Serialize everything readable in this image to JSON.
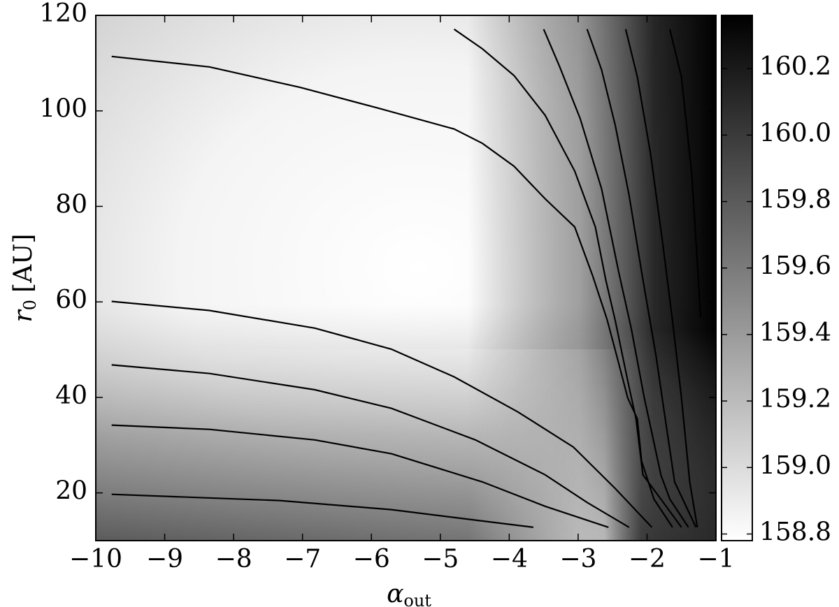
{
  "chart_data": {
    "type": "contour",
    "xlabel": {
      "symbol": "α",
      "subscript": "out"
    },
    "ylabel": {
      "symbol": "r",
      "subscript": "0",
      "unit": "[AU]"
    },
    "xlim": [
      -10,
      -1
    ],
    "ylim": [
      10,
      120
    ],
    "xticks": [
      {
        "value": -10,
        "label": "−10"
      },
      {
        "value": -9,
        "label": "−9"
      },
      {
        "value": -8,
        "label": "−8"
      },
      {
        "value": -7,
        "label": "−7"
      },
      {
        "value": -6,
        "label": "−6"
      },
      {
        "value": -5,
        "label": "−5"
      },
      {
        "value": -4,
        "label": "−4"
      },
      {
        "value": -3,
        "label": "−3"
      },
      {
        "value": -2,
        "label": "−2"
      },
      {
        "value": -1,
        "label": "−1"
      }
    ],
    "yticks": [
      20,
      40,
      60,
      80,
      100,
      120
    ],
    "color": "#000000",
    "contours": [
      {
        "x": [
          -9.77,
          -8.35,
          -7.03,
          -5.91,
          -4.8,
          -4.39,
          -3.93,
          -3.48,
          -3.05,
          -2.79,
          -2.58,
          -2.44,
          -2.28,
          -2.14,
          -2.08,
          -1.9,
          -1.63
        ],
        "y": [
          111.4,
          109.2,
          104.9,
          100.6,
          96.2,
          93.2,
          88.4,
          81.6,
          75.7,
          65.5,
          56.3,
          48.7,
          39.9,
          35.5,
          26.7,
          18.7,
          12.8
        ]
      },
      {
        "x": [
          -4.8,
          -4.39,
          -3.93,
          -3.48,
          -3.05,
          -2.75,
          -2.6,
          -2.46,
          -2.28,
          -2.16,
          -2.06,
          -1.8,
          -1.5
        ],
        "y": [
          117.1,
          113.0,
          107.4,
          99.1,
          87.4,
          75.7,
          64.7,
          56.0,
          43.5,
          35.5,
          23.8,
          18.7,
          12.8
        ]
      },
      {
        "x": [
          -3.5,
          -3.27,
          -2.97,
          -2.66,
          -2.41,
          -2.23,
          -2.04,
          -1.93,
          -1.8,
          -1.67,
          -1.4
        ],
        "y": [
          117.1,
          109.3,
          98.4,
          83.7,
          66.2,
          54.5,
          39.9,
          32.6,
          23.8,
          18.7,
          12.8
        ]
      },
      {
        "x": [
          -2.87,
          -2.66,
          -2.46,
          -2.26,
          -2.06,
          -1.87,
          -1.72,
          -1.6,
          -1.29
        ],
        "y": [
          117.1,
          108.6,
          96.9,
          82.3,
          64.7,
          48.7,
          34.0,
          22.3,
          12.8
        ]
      },
      {
        "x": [
          -2.31,
          -2.14,
          -1.95,
          -1.77,
          -1.63,
          -1.5,
          -1.38,
          -1.27
        ],
        "y": [
          117.1,
          107.1,
          91.1,
          72.0,
          56.0,
          39.9,
          22.3,
          12.8
        ]
      },
      {
        "x": [
          -1.67,
          -1.5,
          -1.35,
          -1.22
        ],
        "y": [
          117.1,
          107.1,
          86.7,
          56.7
        ]
      },
      {
        "x": [
          -9.77,
          -8.35,
          -6.82,
          -5.71,
          -4.8,
          -3.88,
          -3.07,
          -2.46,
          -1.93
        ],
        "y": [
          60.1,
          58.2,
          54.5,
          50.1,
          44.3,
          37.0,
          29.6,
          20.9,
          12.8
        ]
      },
      {
        "x": [
          -9.77,
          -8.35,
          -6.82,
          -5.71,
          -4.49,
          -3.48,
          -2.87,
          -2.26
        ],
        "y": [
          46.8,
          45.0,
          41.6,
          37.7,
          31.1,
          23.8,
          18.0,
          12.8
        ]
      },
      {
        "x": [
          -9.77,
          -8.35,
          -6.82,
          -5.71,
          -4.39,
          -3.48,
          -2.56
        ],
        "y": [
          34.2,
          33.3,
          31.1,
          28.2,
          22.3,
          17.2,
          12.8
        ]
      },
      {
        "x": [
          -9.77,
          -7.33,
          -5.71,
          -4.49,
          -3.65
        ],
        "y": [
          19.7,
          18.4,
          16.5,
          14.3,
          12.8
        ]
      }
    ],
    "colorbar": {
      "lim": [
        158.78,
        160.36
      ],
      "ticks": [
        158.8,
        {
          "value": 159.0,
          "label": "159.0"
        },
        159.2,
        159.4,
        159.6,
        159.8,
        {
          "value": 160.0,
          "label": "160.0"
        },
        160.2
      ]
    }
  }
}
